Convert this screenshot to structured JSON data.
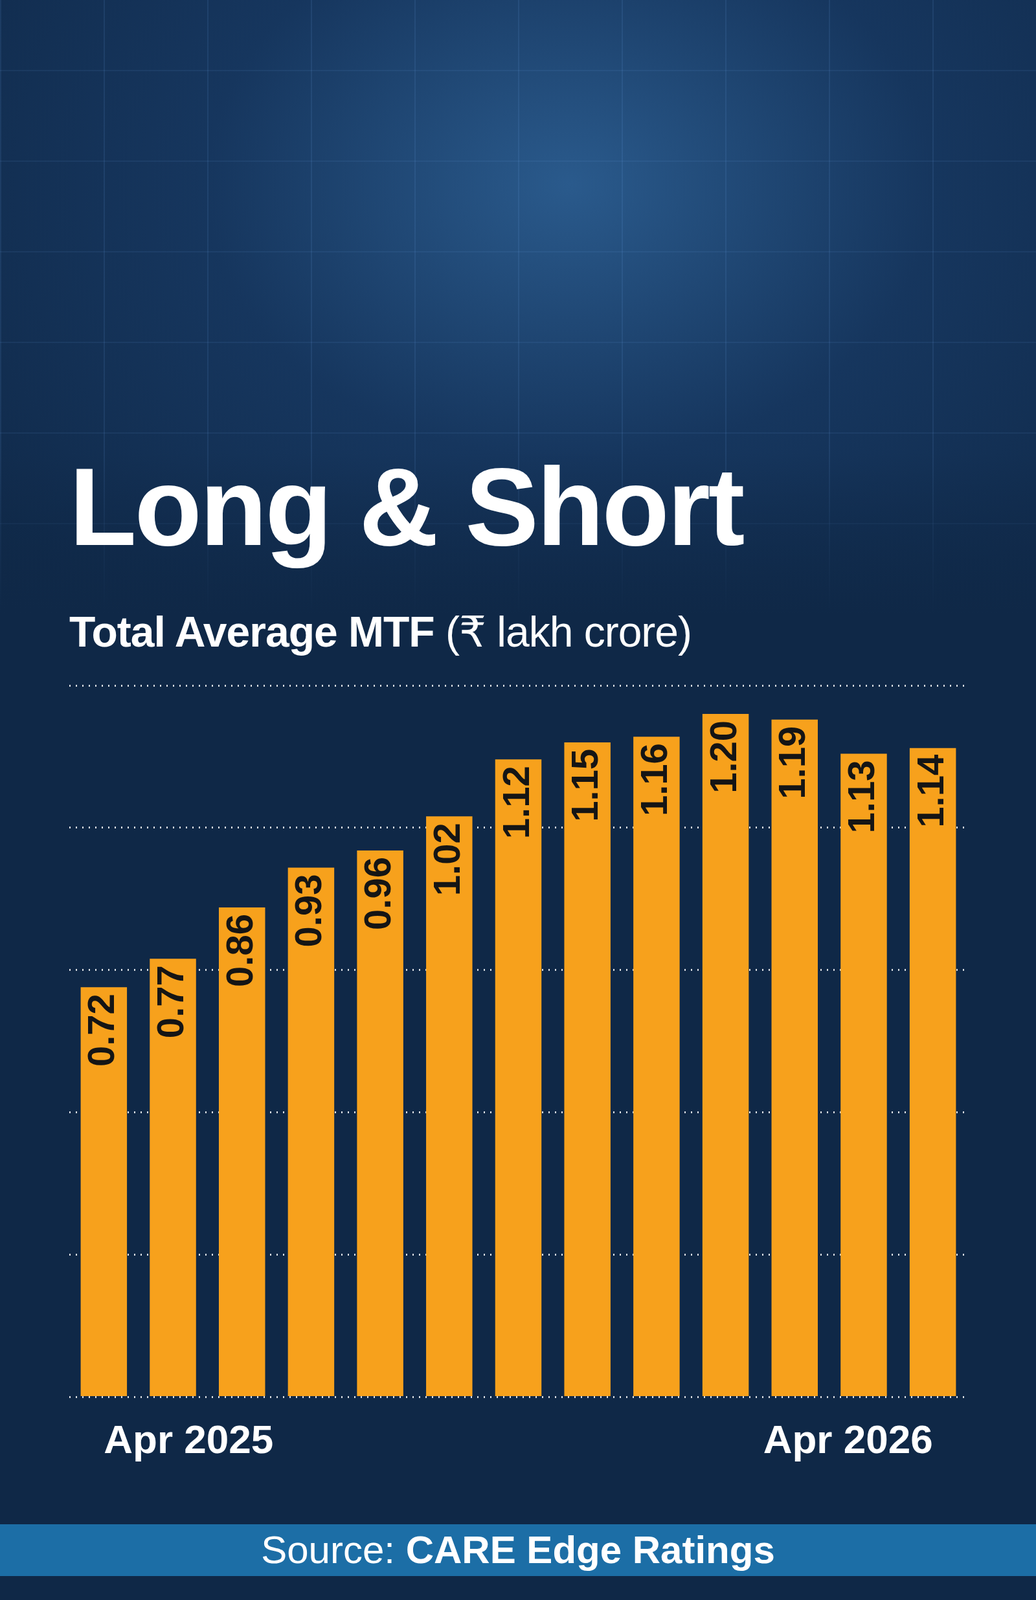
{
  "chart_data": {
    "type": "bar",
    "title": "Long & Short",
    "subtitle": "Total Average MTF (₹ lakh crore)",
    "source": "Source: CARE Edge Ratings",
    "categories": [
      "Apr 2025",
      null,
      null,
      null,
      null,
      null,
      null,
      null,
      null,
      null,
      null,
      null,
      "Apr 2026"
    ],
    "values": [
      0.72,
      0.77,
      0.86,
      0.93,
      0.96,
      1.02,
      1.12,
      1.15,
      1.16,
      1.2,
      1.19,
      1.13,
      1.14
    ],
    "value_labels": [
      "0.72",
      "0.77",
      "0.86",
      "0.93",
      "0.96",
      "1.02",
      "1.12",
      "1.15",
      "1.16",
      "1.20",
      "1.19",
      "1.13",
      "1.14"
    ],
    "color": "#f7a11c",
    "ylim": [
      0,
      1.25
    ],
    "yticks": [
      0,
      0.25,
      0.5,
      0.75,
      1,
      1.25
    ],
    "grid": true,
    "data_labels": true,
    "tick_labels": "x"
  }
}
